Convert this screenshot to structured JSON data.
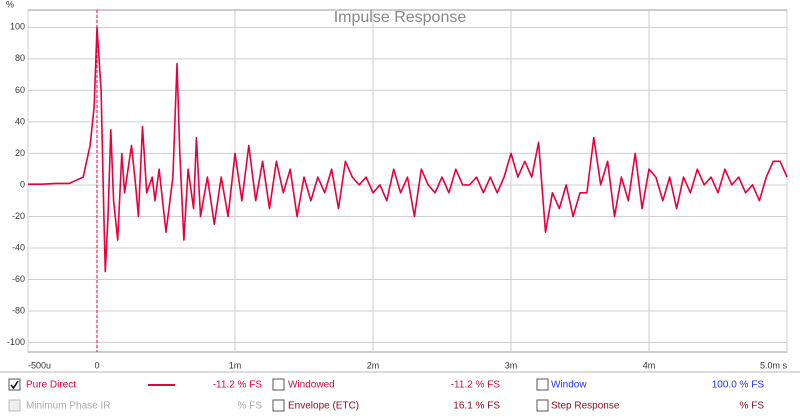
{
  "chart_data": {
    "type": "line",
    "title": "Impulse Response",
    "y_unit": "%",
    "x": [
      -0.5,
      -0.4,
      -0.3,
      -0.2,
      -0.15,
      -0.1,
      -0.05,
      -0.02,
      0.0,
      0.03,
      0.05,
      0.06,
      0.08,
      0.1,
      0.12,
      0.15,
      0.18,
      0.2,
      0.25,
      0.28,
      0.3,
      0.33,
      0.36,
      0.4,
      0.42,
      0.45,
      0.5,
      0.55,
      0.58,
      0.6,
      0.63,
      0.66,
      0.7,
      0.72,
      0.75,
      0.8,
      0.85,
      0.9,
      0.95,
      1.0,
      1.05,
      1.1,
      1.15,
      1.2,
      1.25,
      1.3,
      1.35,
      1.4,
      1.45,
      1.5,
      1.55,
      1.6,
      1.65,
      1.7,
      1.75,
      1.8,
      1.85,
      1.9,
      1.95,
      2.0,
      2.05,
      2.1,
      2.15,
      2.2,
      2.25,
      2.3,
      2.35,
      2.4,
      2.45,
      2.5,
      2.55,
      2.6,
      2.65,
      2.7,
      2.75,
      2.8,
      2.85,
      2.9,
      2.95,
      3.0,
      3.05,
      3.1,
      3.15,
      3.2,
      3.25,
      3.3,
      3.35,
      3.4,
      3.45,
      3.5,
      3.55,
      3.6,
      3.65,
      3.7,
      3.75,
      3.8,
      3.85,
      3.9,
      3.95,
      4.0,
      4.05,
      4.1,
      4.15,
      4.2,
      4.25,
      4.3,
      4.35,
      4.4,
      4.45,
      4.5,
      4.55,
      4.6,
      4.65,
      4.7,
      4.75,
      4.8,
      4.85,
      4.9,
      4.95,
      5.0
    ],
    "series": [
      {
        "name": "Pure Direct",
        "color": "#e8003c",
        "values": [
          0.5,
          0.5,
          1,
          1,
          3,
          5,
          25,
          50,
          100,
          60,
          -20,
          -55,
          -20,
          35,
          -10,
          -35,
          20,
          -5,
          25,
          0,
          -20,
          37,
          -5,
          5,
          -10,
          10,
          -30,
          5,
          77,
          20,
          -35,
          10,
          -15,
          30,
          -20,
          5,
          -25,
          5,
          -20,
          20,
          -10,
          25,
          -10,
          15,
          -15,
          15,
          -5,
          10,
          -20,
          5,
          -10,
          5,
          -5,
          10,
          -15,
          15,
          5,
          0,
          5,
          -5,
          0,
          -10,
          10,
          -5,
          5,
          -20,
          10,
          0,
          -5,
          5,
          -5,
          10,
          0,
          0,
          5,
          -5,
          5,
          -5,
          5,
          20,
          5,
          15,
          5,
          27,
          -30,
          -5,
          -15,
          0,
          -20,
          -5,
          -5,
          30,
          0,
          15,
          -20,
          5,
          -10,
          20,
          -15,
          10,
          5,
          -10,
          5,
          -15,
          5,
          -5,
          10,
          0,
          5,
          -5,
          10,
          0,
          5,
          -5,
          0,
          -10,
          5,
          15,
          15,
          5
        ]
      }
    ],
    "xlim": [
      -0.5,
      5.0
    ],
    "ylim": [
      -106,
      111
    ],
    "xticks": [
      {
        "value": -0.5,
        "label": "-500u"
      },
      0,
      {
        "value": 1,
        "label": "1m"
      },
      {
        "value": 2,
        "label": "2m"
      },
      {
        "value": 3,
        "label": "3m"
      },
      {
        "value": 4,
        "label": "4m"
      },
      {
        "value": 5,
        "label": "5.0m s"
      }
    ],
    "yticks": [
      -100,
      -80,
      -60,
      -40,
      -20,
      0,
      20,
      40,
      60,
      80,
      100
    ],
    "grid": true
  },
  "panel": {
    "rows": [
      [
        {
          "label": "Pure Direct",
          "value": "-11.2 % FS"
        },
        {
          "label": "Windowed",
          "value": "-11.2 % FS"
        },
        {
          "label": "Window",
          "value": "100.0 % FS"
        }
      ],
      [
        {
          "label": "Minimum Phase IR",
          "value": "% FS"
        },
        {
          "label": "Envelope (ETC)",
          "value": "16.1 % FS"
        },
        {
          "label": "Step Response",
          "value": "% FS"
        }
      ]
    ]
  }
}
